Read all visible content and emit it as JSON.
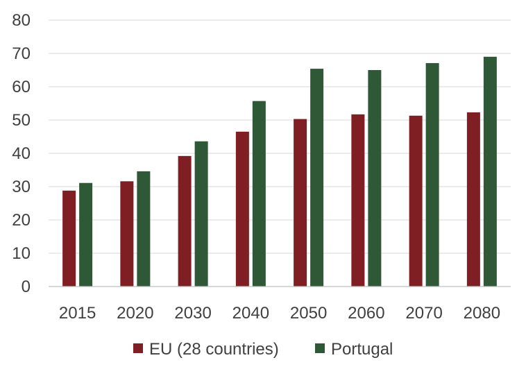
{
  "chart_data": {
    "type": "bar",
    "title": "",
    "xlabel": "",
    "ylabel": "",
    "categories": [
      "2015",
      "2020",
      "2030",
      "2040",
      "2050",
      "2060",
      "2070",
      "2080"
    ],
    "series": [
      {
        "name": "EU (28 countries)",
        "color": "#7f1f23",
        "values": [
          28.8,
          31.6,
          39.2,
          46.5,
          50.3,
          51.7,
          51.3,
          52.3
        ]
      },
      {
        "name": "Portugal",
        "color": "#2f5936",
        "values": [
          31.1,
          34.6,
          43.6,
          55.7,
          65.4,
          65.0,
          67.1,
          69.0
        ]
      }
    ],
    "ylim": [
      0,
      80
    ],
    "yticks": [
      0,
      10,
      20,
      30,
      40,
      50,
      60,
      70,
      80
    ],
    "grid": true,
    "legend_position": "bottom"
  }
}
